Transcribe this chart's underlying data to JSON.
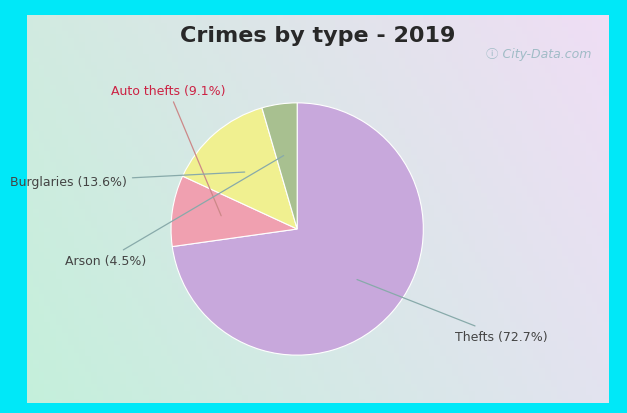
{
  "title": "Crimes by type - 2019",
  "labels": [
    "Thefts",
    "Auto thefts",
    "Burglaries",
    "Arson"
  ],
  "values": [
    72.7,
    9.1,
    13.6,
    4.5
  ],
  "colors": [
    "#c8a8dc",
    "#f0a0b0",
    "#f0f090",
    "#a8c090"
  ],
  "label_texts": [
    "Thefts (72.7%)",
    "Auto thefts (9.1%)",
    "Burglaries (13.6%)",
    "Arson (4.5%)"
  ],
  "background_border": "#00e8f8",
  "background_main_tl": "#c8e8d8",
  "background_main_br": "#e8e8f8",
  "title_fontsize": 16,
  "label_fontsize": 9,
  "watermark": "ⓘ City-Data.com",
  "title_color": "#282828"
}
